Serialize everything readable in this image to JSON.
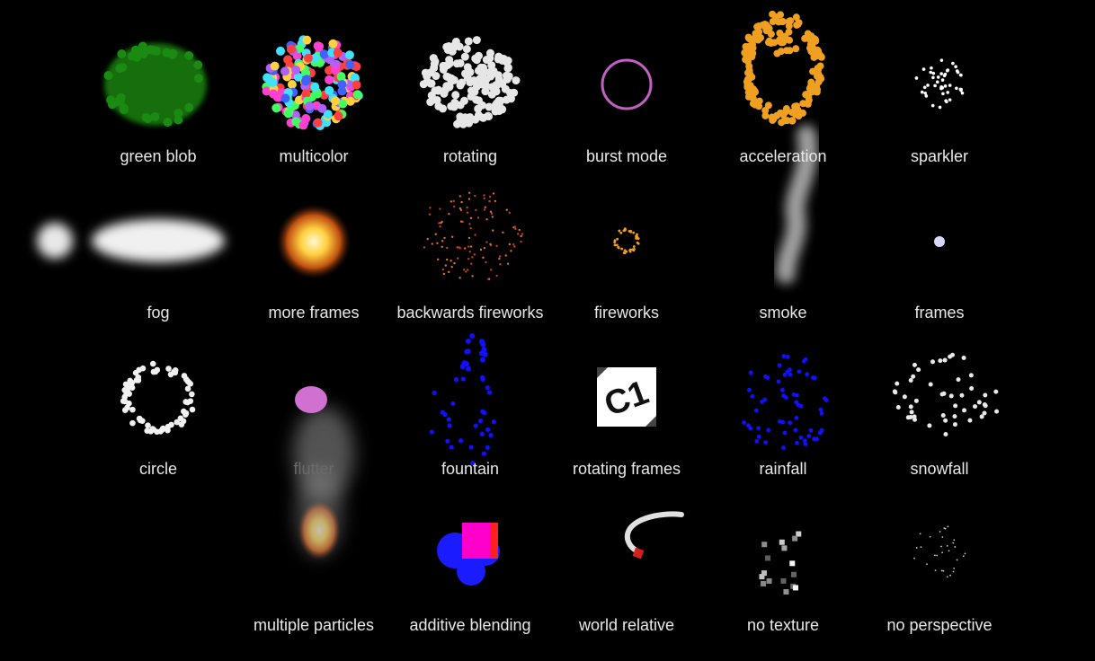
{
  "samples": [
    {
      "label": "green blob",
      "effect": "green-blob"
    },
    {
      "label": "multicolor",
      "effect": "multicolor"
    },
    {
      "label": "rotating",
      "effect": "rotating"
    },
    {
      "label": "burst mode",
      "effect": "burst-mode"
    },
    {
      "label": "acceleration",
      "effect": "acceleration"
    },
    {
      "label": "sparkler",
      "effect": "sparkler"
    },
    {
      "label": "fog",
      "effect": "fog"
    },
    {
      "label": "more frames",
      "effect": "more-frames"
    },
    {
      "label": "backwards fireworks",
      "effect": "backwards-fireworks"
    },
    {
      "label": "fireworks",
      "effect": "fireworks"
    },
    {
      "label": "smoke",
      "effect": "smoke"
    },
    {
      "label": "frames",
      "effect": "frames"
    },
    {
      "label": "circle",
      "effect": "circle"
    },
    {
      "label": "flutter",
      "effect": "flutter"
    },
    {
      "label": "fountain",
      "effect": "fountain"
    },
    {
      "label": "rotating frames",
      "effect": "rotating-frames"
    },
    {
      "label": "rainfall",
      "effect": "rainfall"
    },
    {
      "label": "snowfall",
      "effect": "snowfall"
    },
    {
      "label": "multiple particles",
      "effect": "multiple-particles"
    },
    {
      "label": "additive blending",
      "effect": "additive-blending"
    },
    {
      "label": "world relative",
      "effect": "world-relative"
    },
    {
      "label": "no texture",
      "effect": "no-texture"
    },
    {
      "label": "no perspective",
      "effect": "no-perspective"
    }
  ],
  "colors": {
    "background": "#000000",
    "label": "#e8e8e8",
    "green": "#1a8a12",
    "orange": "#f0a020",
    "blue": "#1010ff",
    "magenta": "#ff00cc"
  }
}
